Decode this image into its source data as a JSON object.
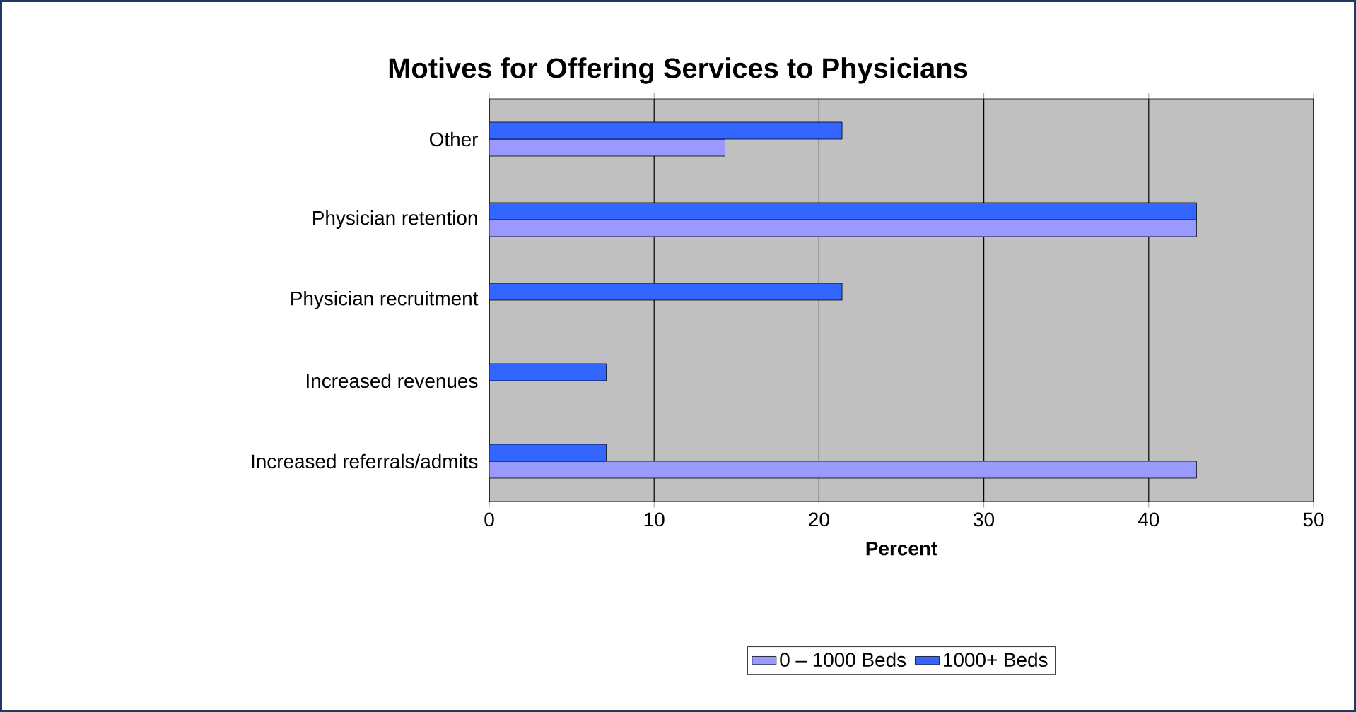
{
  "chart_data": {
    "type": "bar",
    "orientation": "horizontal",
    "title": "Motives for Offering Services to Physicians",
    "xlabel": "Percent",
    "categories": [
      "Other",
      "Physician retention",
      "Physician recruitment",
      "Increased revenues",
      "Increased referrals/admits"
    ],
    "series": [
      {
        "name": "0 – 1000 Beds",
        "color": "#9999ff",
        "values": [
          14.3,
          42.9,
          null,
          null,
          42.9
        ]
      },
      {
        "name": "1000+ Beds",
        "color": "#3366ff",
        "values": [
          21.4,
          42.9,
          21.4,
          7.1,
          7.1
        ]
      }
    ],
    "xlim": [
      0,
      50
    ],
    "xticks": [
      0,
      10,
      20,
      30,
      40,
      50
    ],
    "grid": "x",
    "legend": "bottom"
  }
}
